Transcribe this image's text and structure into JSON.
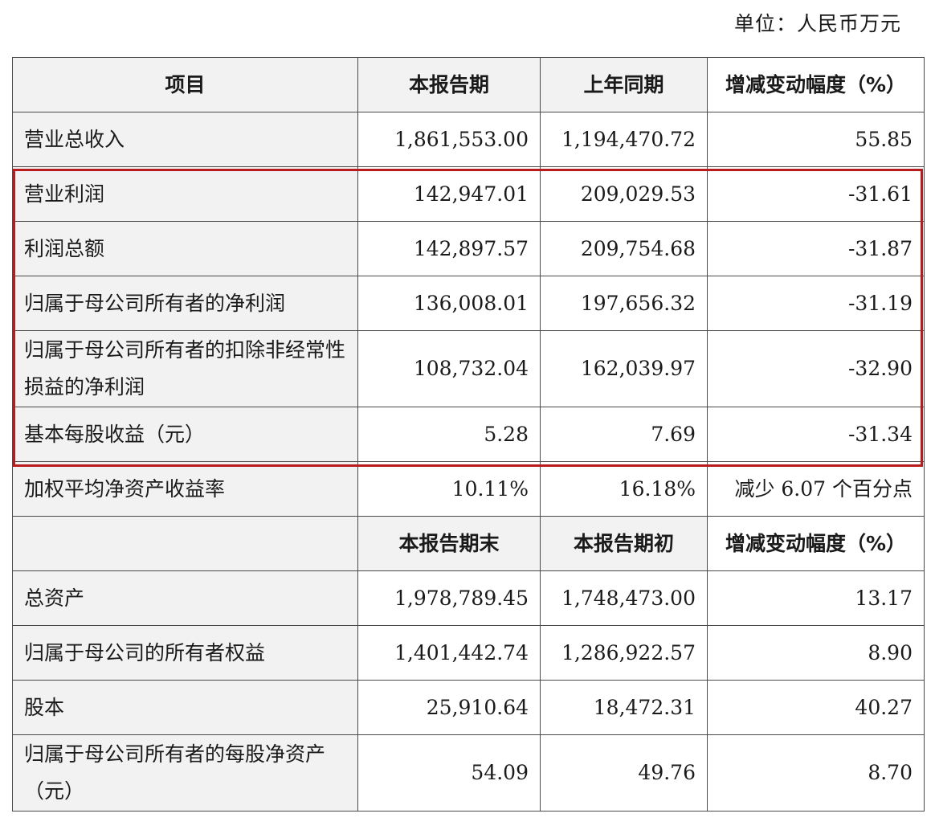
{
  "unit_label": "单位：人民币万元",
  "header1": {
    "item": "项目",
    "current": "本报告期",
    "previous": "上年同期",
    "change": "增减变动幅度（%）"
  },
  "rows1": [
    {
      "item": "营业总收入",
      "current": "1,861,553.00",
      "previous": "1,194,470.72",
      "change": "55.85"
    },
    {
      "item": "营业利润",
      "current": "142,947.01",
      "previous": "209,029.53",
      "change": "-31.61"
    },
    {
      "item": "利润总额",
      "current": "142,897.57",
      "previous": "209,754.68",
      "change": "-31.87"
    },
    {
      "item": "归属于母公司所有者的净利润",
      "current": "136,008.01",
      "previous": "197,656.32",
      "change": "-31.19"
    },
    {
      "item": "归属于母公司所有者的扣除非经常性损益的净利润",
      "current": "108,732.04",
      "previous": "162,039.97",
      "change": "-32.90"
    },
    {
      "item": "基本每股收益（元）",
      "current": "5.28",
      "previous": "7.69",
      "change": "-31.34"
    },
    {
      "item": "加权平均净资产收益率",
      "current": "10.11%",
      "previous": "16.18%",
      "change": "减少 6.07 个百分点"
    }
  ],
  "header2": {
    "item": "",
    "current": "本报告期末",
    "previous": "本报告期初",
    "change": "增减变动幅度（%）"
  },
  "rows2": [
    {
      "item": "总资产",
      "current": "1,978,789.45",
      "previous": "1,748,473.00",
      "change": "13.17"
    },
    {
      "item": "归属于母公司的所有者权益",
      "current": "1,401,442.74",
      "previous": "1,286,922.57",
      "change": "8.90"
    },
    {
      "item": "股本",
      "current": "25,910.64",
      "previous": "18,472.31",
      "change": "40.27"
    },
    {
      "item": "归属于母公司所有者的每股净资产（元）",
      "current": "54.09",
      "previous": "49.76",
      "change": "8.70"
    }
  ],
  "highlight_color": "#b81c1c",
  "header_bg_color": "#f2f2f2"
}
